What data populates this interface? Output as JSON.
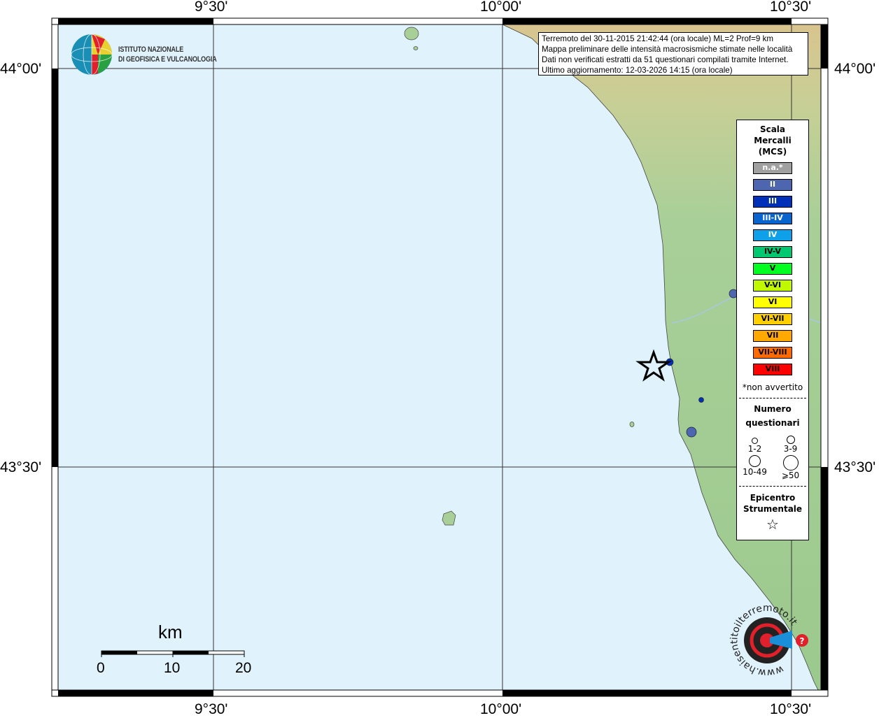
{
  "info_box": {
    "line1": "Terremoto del 30-11-2015 21:42:44 (ora locale) ML=2 Prof=9 km",
    "line2": "Mappa preliminare delle intensità macrosismiche stimate nelle località",
    "line3": "Dati non verificati estratti da 51 questionari compilati tramite Internet.",
    "line4": "Ultimo aggiornamento: 12-03-2026 14:15 (ora locale)"
  },
  "logo": {
    "line1": "ISTITUTO NAZIONALE",
    "line2": "DI GEOFISICA E VULCANOLOGIA"
  },
  "axes": {
    "lon_labels": [
      "9°30'",
      "10°00'",
      "10°30'"
    ],
    "lat_labels": [
      "44°00'",
      "43°30'"
    ]
  },
  "scale_bar": {
    "unit": "km",
    "ticks": [
      "0",
      "10",
      "20"
    ]
  },
  "legend": {
    "title": [
      "Scala",
      "Mercalli",
      "(MCS)"
    ],
    "classes": [
      {
        "label": "n.a.*",
        "color": "#a0a0a0",
        "text_color": "#ffffff"
      },
      {
        "label": "II",
        "color": "#4e66b0",
        "text_color": "#ffffff"
      },
      {
        "label": "III",
        "color": "#0030b8",
        "text_color": "#ffffff"
      },
      {
        "label": "III-IV",
        "color": "#0a64d0",
        "text_color": "#ffffff"
      },
      {
        "label": "IV",
        "color": "#0ea0e8",
        "text_color": "#ffffff"
      },
      {
        "label": "IV-V",
        "color": "#00c870",
        "text_color": "#000000"
      },
      {
        "label": "V",
        "color": "#00ff20",
        "text_color": "#000000"
      },
      {
        "label": "V-VI",
        "color": "#c0f800",
        "text_color": "#000000"
      },
      {
        "label": "VI",
        "color": "#ffff00",
        "text_color": "#000000"
      },
      {
        "label": "VI-VII",
        "color": "#ffd000",
        "text_color": "#000000"
      },
      {
        "label": "VII",
        "color": "#ffa800",
        "text_color": "#000000"
      },
      {
        "label": "VII-VIII",
        "color": "#ff6a00",
        "text_color": "#000000"
      },
      {
        "label": "VIII",
        "color": "#ff0000",
        "text_color": "#000000"
      }
    ],
    "note": "*non avvertito",
    "count_title": [
      "Numero",
      "questionari"
    ],
    "counts": [
      "1-2",
      "3-9",
      "10-49",
      "⩾50"
    ],
    "epicenter_title": [
      "Epicentro",
      "Strumentale"
    ]
  },
  "points": [
    {
      "intensity": "II",
      "color": "#4e66b0"
    },
    {
      "intensity": "III",
      "color": "#0030b8"
    },
    {
      "intensity": "III",
      "color": "#0030b8"
    },
    {
      "intensity": "II",
      "color": "#4e66b0"
    }
  ],
  "badge": {
    "text": "www.haisentitoilterremoto.it"
  }
}
